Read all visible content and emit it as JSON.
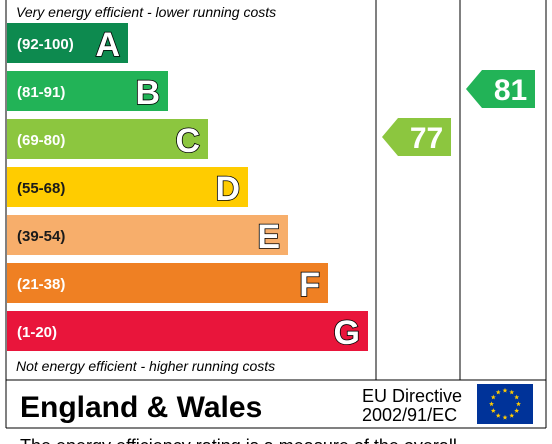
{
  "chart_data": {
    "type": "table",
    "top_caption": "Very energy efficient - lower running costs",
    "bottom_caption": "Not energy efficient - higher running costs",
    "bands": [
      {
        "range": "(92-100)",
        "letter": "A",
        "color": "#0d8a4f"
      },
      {
        "range": "(81-91)",
        "letter": "B",
        "color": "#22b357"
      },
      {
        "range": "(69-80)",
        "letter": "C",
        "color": "#8cc63f"
      },
      {
        "range": "(55-68)",
        "letter": "D",
        "color": "#ffcc00"
      },
      {
        "range": "(39-54)",
        "letter": "E",
        "color": "#f7ae6b"
      },
      {
        "range": "(21-38)",
        "letter": "F",
        "color": "#ef8023"
      },
      {
        "range": "(1-20)",
        "letter": "G",
        "color": "#e9153b"
      }
    ],
    "ratings": [
      {
        "value": "77",
        "band": "C",
        "color": "#8cc63f"
      },
      {
        "value": "81",
        "band": "B",
        "color": "#22b357"
      }
    ]
  },
  "footer": {
    "region": "England & Wales",
    "directive_line1": "EU Directive",
    "directive_line2": "2002/91/EC",
    "flag_color": "#003399",
    "star_color": "#ffcc00"
  },
  "bottom_text": "The energy efficiency rating is a measure of the overall"
}
